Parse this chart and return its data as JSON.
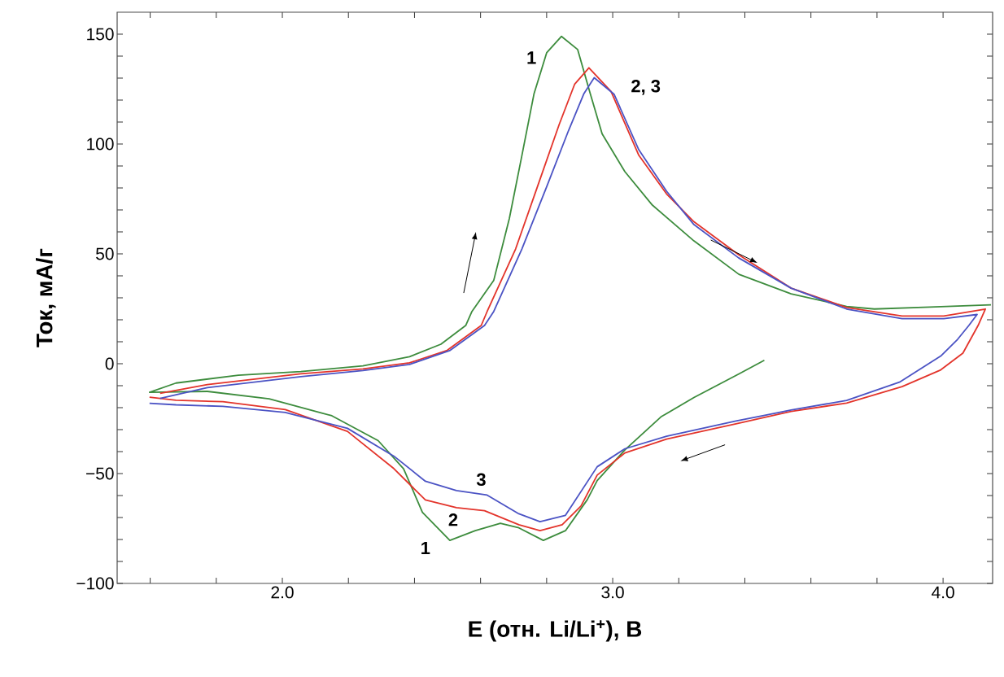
{
  "chart_data": {
    "type": "line",
    "xlabel": "E (отн. Li/Li$^{+}$), В",
    "ylabel": "Ток, мА/г",
    "xlim": [
      1.5,
      4.15
    ],
    "ylim": [
      -100,
      160
    ],
    "xticks": [
      {
        "value": 1.6,
        "label": null
      },
      {
        "value": 1.8,
        "label": null
      },
      {
        "value": 2.0,
        "label": "2.0"
      },
      {
        "value": 2.2,
        "label": null
      },
      {
        "value": 2.4,
        "label": null
      },
      {
        "value": 2.6,
        "label": null
      },
      {
        "value": 2.8,
        "label": null
      },
      {
        "value": 3.0,
        "label": "3.0"
      },
      {
        "value": 3.2,
        "label": null
      },
      {
        "value": 3.4,
        "label": null
      },
      {
        "value": 3.6,
        "label": null
      },
      {
        "value": 3.8,
        "label": null
      },
      {
        "value": 4.0,
        "label": "4.0"
      }
    ],
    "yticks": [
      {
        "value": -100,
        "label": "−100"
      },
      {
        "value": -90,
        "label": null
      },
      {
        "value": -80,
        "label": null
      },
      {
        "value": -70,
        "label": null
      },
      {
        "value": -60,
        "label": null
      },
      {
        "value": -50,
        "label": "−50"
      },
      {
        "value": -40,
        "label": null
      },
      {
        "value": -30,
        "label": null
      },
      {
        "value": -20,
        "label": null
      },
      {
        "value": -10,
        "label": null
      },
      {
        "value": 0,
        "label": "0"
      },
      {
        "value": 10,
        "label": null
      },
      {
        "value": 20,
        "label": null
      },
      {
        "value": 30,
        "label": null
      },
      {
        "value": 40,
        "label": null
      },
      {
        "value": 50,
        "label": "50"
      },
      {
        "value": 60,
        "label": null
      },
      {
        "value": 70,
        "label": null
      },
      {
        "value": 80,
        "label": null
      },
      {
        "value": 90,
        "label": null
      },
      {
        "value": 100,
        "label": "100"
      },
      {
        "value": 110,
        "label": null
      },
      {
        "value": 120,
        "label": null
      },
      {
        "value": 130,
        "label": null
      },
      {
        "value": 140,
        "label": null
      },
      {
        "value": 150,
        "label": "150"
      }
    ],
    "series": [
      {
        "color": "#3d8c3d",
        "x": [
          3.459,
          3.381,
          3.246,
          3.146,
          3.037,
          2.953,
          2.923,
          2.857,
          2.79,
          2.716,
          2.66,
          2.584,
          2.507,
          2.424,
          2.367,
          2.29,
          2.15,
          1.96,
          1.773,
          1.598,
          1.678,
          1.867,
          2.056,
          2.244,
          2.385,
          2.48,
          2.555,
          2.574,
          2.64,
          2.687,
          2.725,
          2.762,
          2.8,
          2.845,
          2.894,
          2.932,
          2.968,
          3.037,
          3.12,
          3.246,
          3.382,
          3.54,
          3.708,
          3.792,
          3.96,
          4.145
        ],
        "values": [
          1.6,
          -4.7,
          -15.4,
          -24.2,
          -39.2,
          -53.2,
          -61.9,
          -76,
          -80.4,
          -74.7,
          -72.6,
          -76,
          -80.4,
          -67.6,
          -47.8,
          -35,
          -23.7,
          -16,
          -12.6,
          -13,
          -8.8,
          -5.2,
          -3.6,
          -1.0,
          3.2,
          8.9,
          17.4,
          23.8,
          38,
          66,
          94.7,
          123,
          141.5,
          149,
          143,
          123,
          104.6,
          87.4,
          72.2,
          55.9,
          40.7,
          31.8,
          26.1,
          24.9,
          25.8,
          26.8
        ]
      },
      {
        "color": "#e3342b",
        "x": [
          1.598,
          1.678,
          1.82,
          2.009,
          2.197,
          2.338,
          2.433,
          2.527,
          2.612,
          2.716,
          2.78,
          2.847,
          2.904,
          2.953,
          3.037,
          3.163,
          3.373,
          3.54,
          3.708,
          3.876,
          3.993,
          4.06,
          4.106,
          4.128,
          4.002,
          3.876,
          3.708,
          3.54,
          3.381,
          3.246,
          3.163,
          3.079,
          2.995,
          2.928,
          2.885,
          2.838,
          2.772,
          2.706,
          2.62,
          2.602,
          2.499,
          2.385,
          2.244,
          2.056,
          1.773,
          1.63
        ],
        "values": [
          -15.2,
          -16.6,
          -17.3,
          -20.9,
          -30.8,
          -47.8,
          -62,
          -65.5,
          -66.9,
          -73.3,
          -76,
          -73.3,
          -64.8,
          -50.7,
          -40.6,
          -34.3,
          -27.4,
          -21.7,
          -17.9,
          -10.4,
          -2.8,
          4.8,
          17.4,
          24.9,
          21.7,
          21.7,
          25.6,
          34.4,
          49.6,
          64.6,
          77.3,
          94.9,
          123.9,
          134.7,
          127.3,
          108.9,
          80.5,
          52.2,
          23.8,
          17.4,
          6.1,
          0.4,
          -2.4,
          -4.6,
          -9.5,
          -13.5
        ]
      },
      {
        "color": "#4b53c4",
        "x": [
          1.598,
          1.678,
          1.82,
          2.009,
          2.197,
          2.338,
          2.433,
          2.527,
          2.62,
          2.716,
          2.78,
          2.857,
          2.953,
          3.037,
          3.163,
          3.373,
          3.54,
          3.708,
          3.868,
          3.993,
          4.044,
          4.078,
          4.103,
          4.002,
          3.876,
          3.708,
          3.54,
          3.381,
          3.246,
          3.163,
          3.079,
          3.004,
          2.944,
          2.913,
          2.866,
          2.8,
          2.725,
          2.64,
          2.612,
          2.508,
          2.385,
          2.244,
          2.056,
          1.773,
          1.63
        ],
        "values": [
          -18,
          -18.7,
          -19.4,
          -22.2,
          -29.4,
          -42.1,
          -53.5,
          -57.7,
          -59.8,
          -68.3,
          -71.9,
          -69,
          -46.9,
          -38.7,
          -33,
          -26.1,
          -21.1,
          -16.7,
          -8.4,
          3.5,
          11.1,
          17.4,
          22.4,
          20.5,
          20.5,
          24.9,
          34.4,
          48.2,
          63.3,
          78.5,
          97.4,
          122.7,
          130.2,
          123,
          106,
          80.5,
          52.2,
          23.8,
          17.4,
          6.1,
          -0.3,
          -3.1,
          -5.9,
          -10.9,
          -15.8
        ]
      }
    ],
    "annotations": [
      "1",
      "2, 3",
      "3",
      "2",
      "1"
    ]
  }
}
